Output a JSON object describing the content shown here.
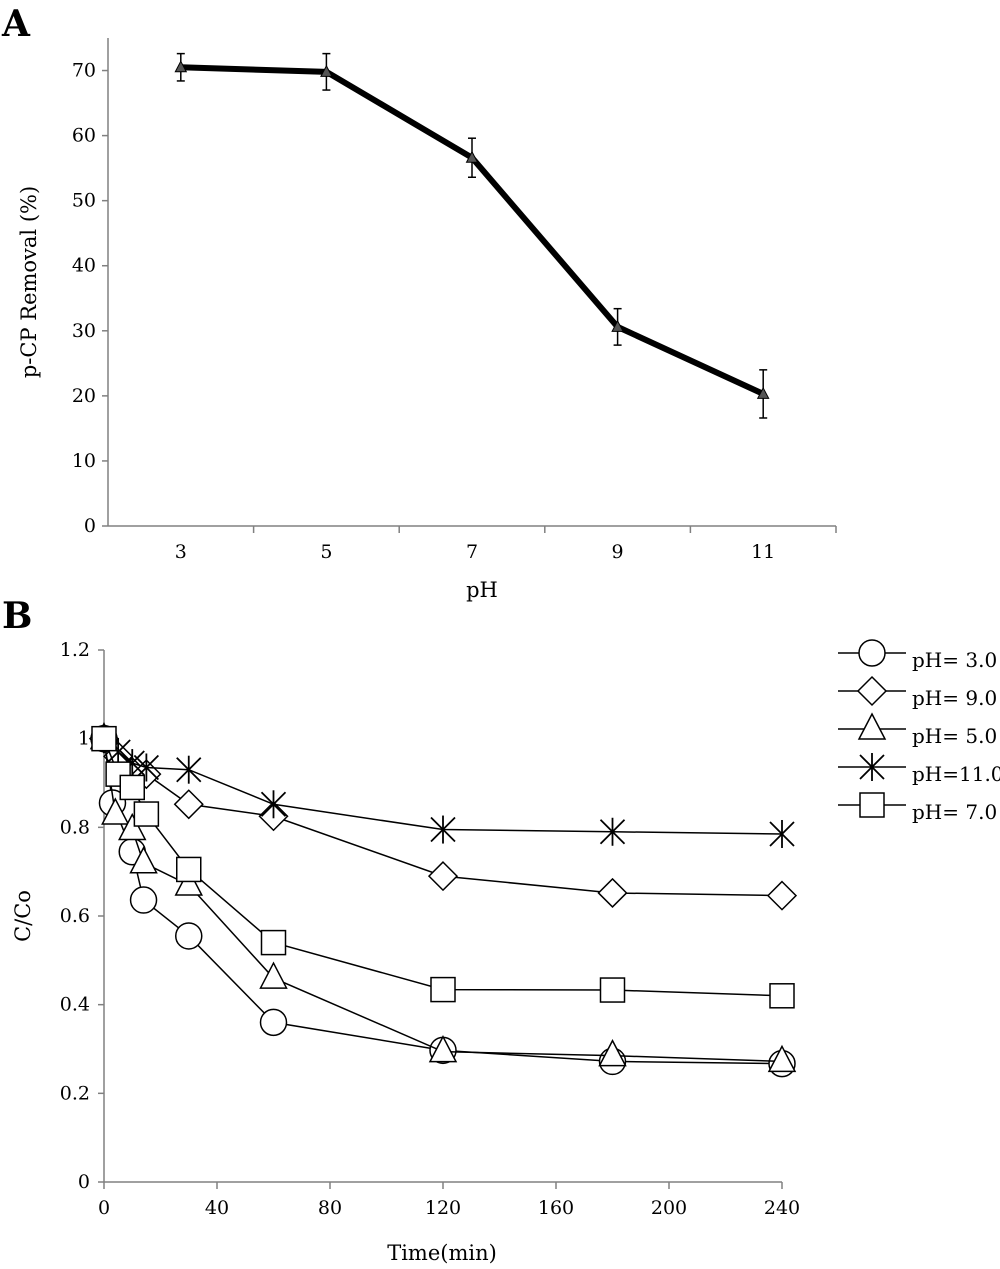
{
  "chart_data": [
    {
      "panel": "A",
      "type": "line",
      "xlabel": "pH",
      "ylabel": "p-CP Removal (%)",
      "categories": [
        "3",
        "5",
        "7",
        "9",
        "11"
      ],
      "ylim": [
        0,
        75
      ],
      "yticks": [
        0,
        10,
        20,
        30,
        40,
        50,
        60,
        70
      ],
      "grid": false,
      "series": [
        {
          "values": [
            70.5,
            69.8,
            56.6,
            30.6,
            20.3
          ],
          "errors": [
            2.1,
            2.8,
            3.0,
            2.8,
            3.7
          ],
          "marker": "filled-triangle",
          "color": "#000000"
        }
      ]
    },
    {
      "panel": "B",
      "type": "line",
      "xlabel": "Time(min)",
      "ylabel": "C/Co",
      "xlim": [
        0,
        240
      ],
      "xticks": [
        0,
        40,
        80,
        120,
        160,
        200,
        240
      ],
      "ylim": [
        0,
        1.2
      ],
      "yticks": [
        "0",
        "0.2",
        "0.4",
        "0.6",
        "0.8",
        "1",
        "1.2"
      ],
      "grid": false,
      "legend": "right",
      "series": [
        {
          "name": "pH= 3.0",
          "marker": "circle",
          "x": [
            0,
            3,
            10,
            14,
            30,
            60,
            120,
            180,
            240
          ],
          "y": [
            1.0,
            0.855,
            0.745,
            0.636,
            0.555,
            0.36,
            0.297,
            0.272,
            0.267
          ]
        },
        {
          "name": "pH= 9.0",
          "marker": "diamond",
          "x": [
            0,
            5,
            10,
            15,
            30,
            60,
            120,
            180,
            240
          ],
          "y": [
            1.0,
            0.96,
            0.925,
            0.92,
            0.852,
            0.825,
            0.69,
            0.652,
            0.646
          ]
        },
        {
          "name": "pH= 5.0",
          "marker": "triangle",
          "x": [
            0,
            4,
            10,
            14,
            30,
            60,
            120,
            180,
            240
          ],
          "y": [
            1.0,
            0.83,
            0.795,
            0.72,
            0.67,
            0.46,
            0.294,
            0.285,
            0.272
          ]
        },
        {
          "name": "pH=11.0",
          "marker": "star",
          "x": [
            0,
            5,
            10,
            15,
            30,
            60,
            120,
            180,
            240
          ],
          "y": [
            1.0,
            0.97,
            0.945,
            0.935,
            0.93,
            0.852,
            0.795,
            0.79,
            0.785
          ]
        },
        {
          "name": "pH= 7.0",
          "marker": "square",
          "x": [
            0,
            5,
            10,
            15,
            30,
            60,
            120,
            180,
            240
          ],
          "y": [
            1.0,
            0.92,
            0.89,
            0.83,
            0.705,
            0.54,
            0.434,
            0.433,
            0.42
          ]
        }
      ]
    }
  ]
}
